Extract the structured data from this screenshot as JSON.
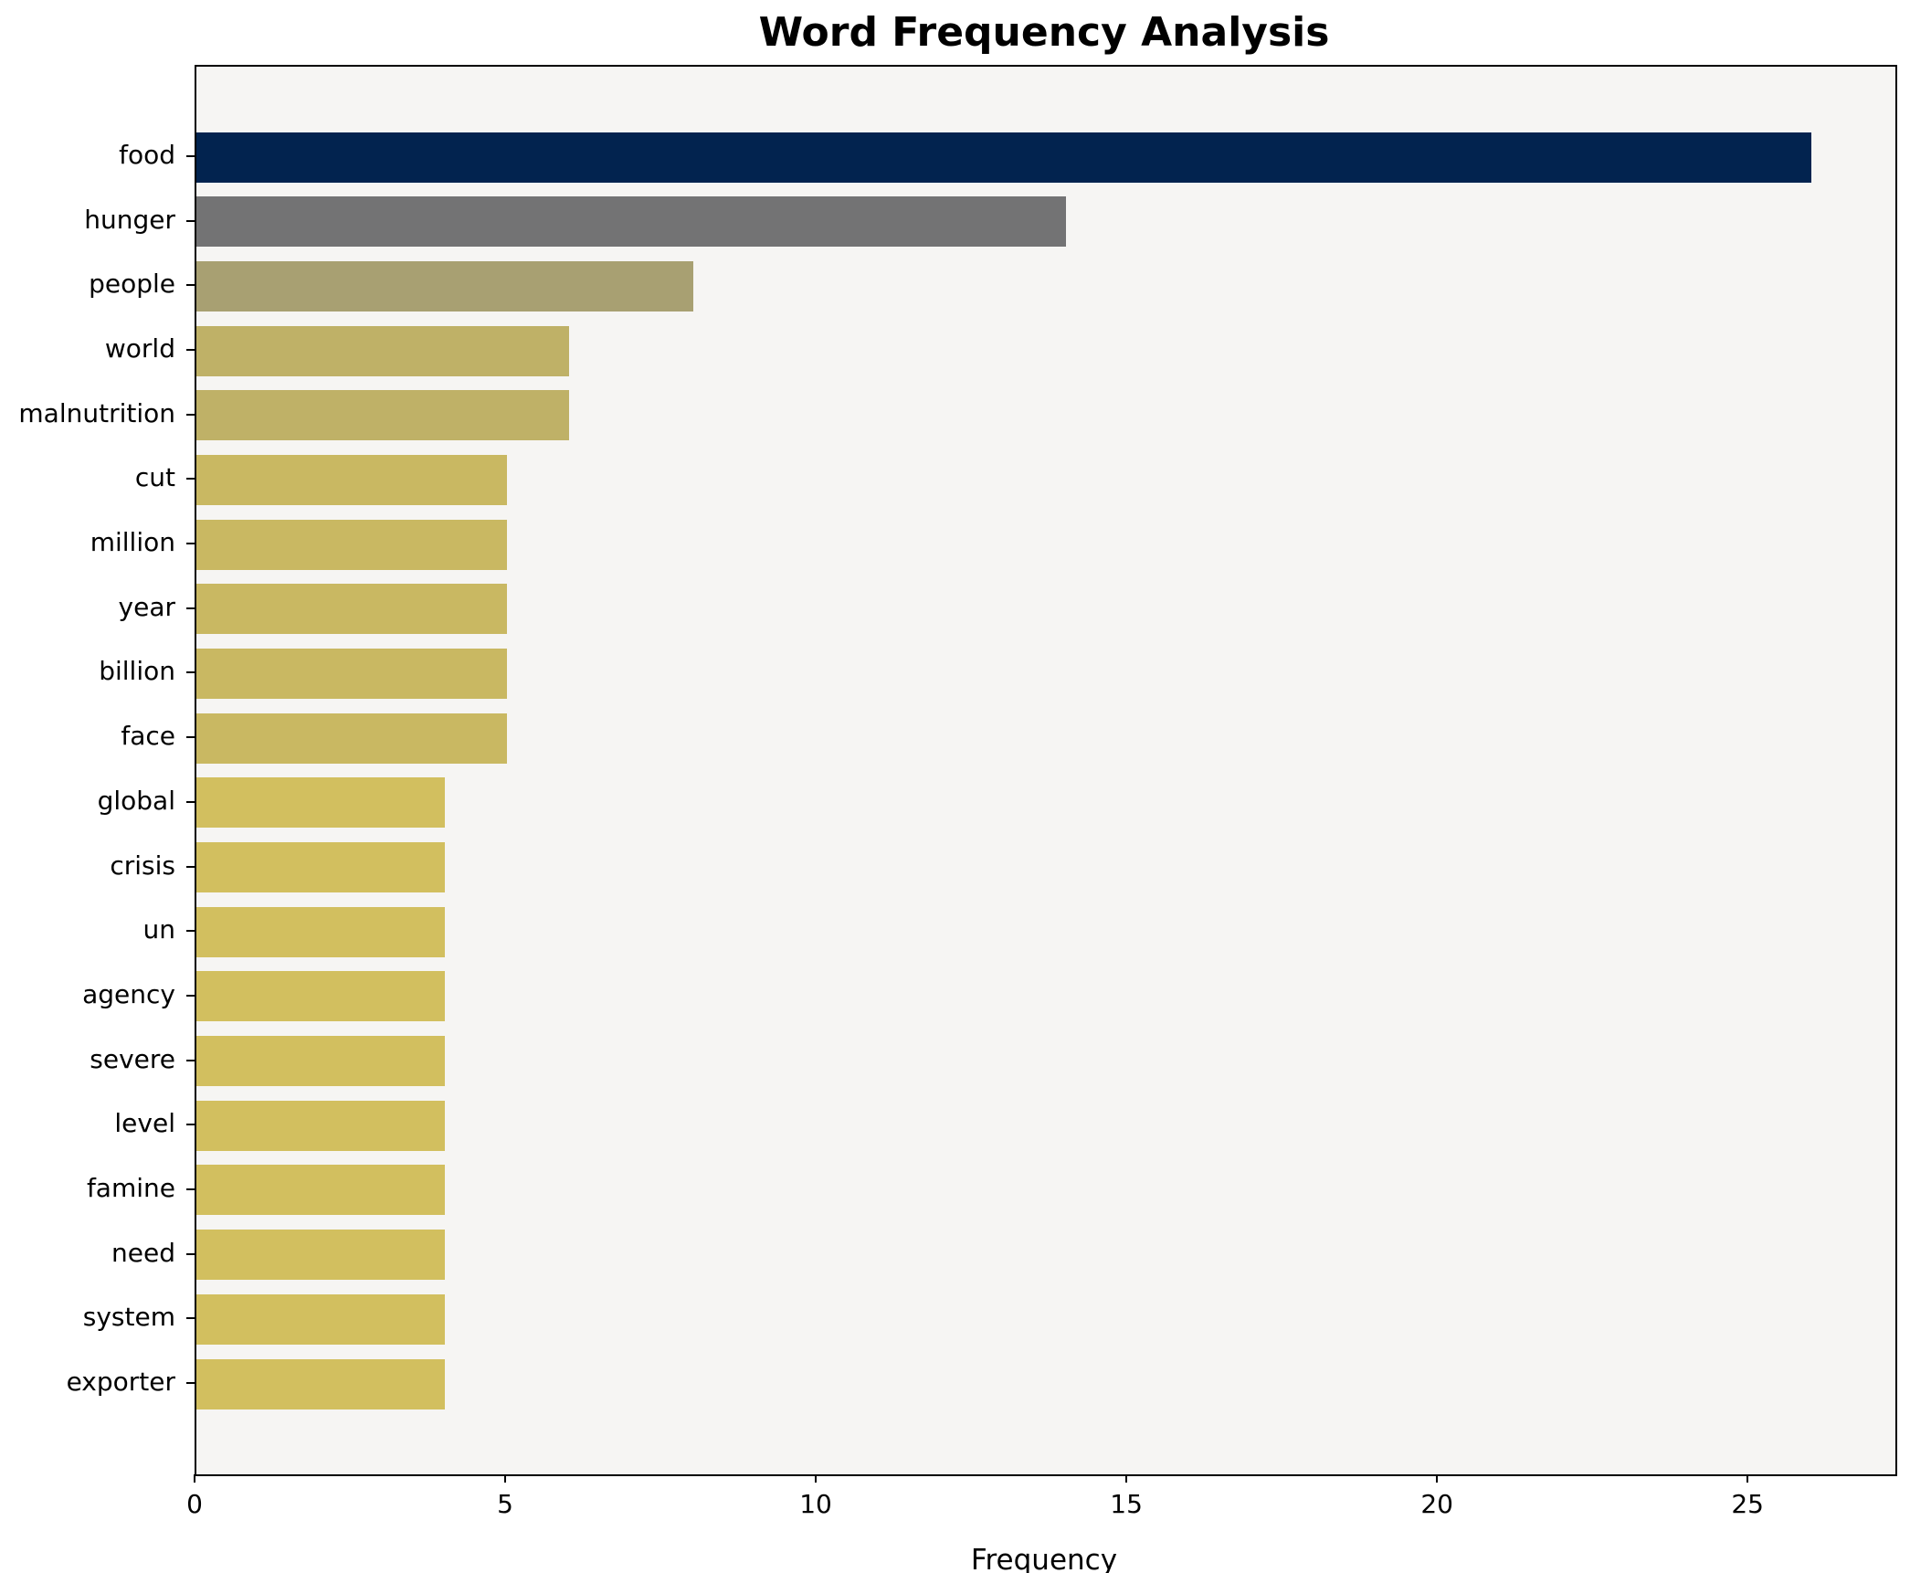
{
  "chart_data": {
    "type": "bar",
    "orientation": "horizontal",
    "title": "Word Frequency Analysis",
    "xlabel": "Frequency",
    "ylabel": "",
    "categories": [
      "food",
      "hunger",
      "people",
      "world",
      "malnutrition",
      "cut",
      "million",
      "year",
      "billion",
      "face",
      "global",
      "crisis",
      "un",
      "agency",
      "severe",
      "level",
      "famine",
      "need",
      "system",
      "exporter"
    ],
    "values": [
      26,
      14,
      8,
      6,
      6,
      5,
      5,
      5,
      5,
      5,
      4,
      4,
      4,
      4,
      4,
      4,
      4,
      4,
      4,
      4
    ],
    "bar_colors": [
      "#02234f",
      "#737374",
      "#a8a072",
      "#bfb167",
      "#bfb167",
      "#c9b862",
      "#c9b862",
      "#c9b862",
      "#c9b862",
      "#c9b862",
      "#d2bf5f",
      "#d2bf5f",
      "#d2bf5f",
      "#d2bf5f",
      "#d2bf5f",
      "#d2bf5f",
      "#d2bf5f",
      "#d2bf5f",
      "#d2bf5f",
      "#d2bf5f"
    ],
    "xticks": [
      0,
      5,
      10,
      15,
      20,
      25
    ],
    "xlim": [
      0,
      27.35
    ],
    "grid": false,
    "legend": null,
    "colors": {
      "axes_background": "#f6f5f3",
      "figure_background": "#ffffff",
      "spine": "#000000",
      "text": "#000000"
    }
  }
}
